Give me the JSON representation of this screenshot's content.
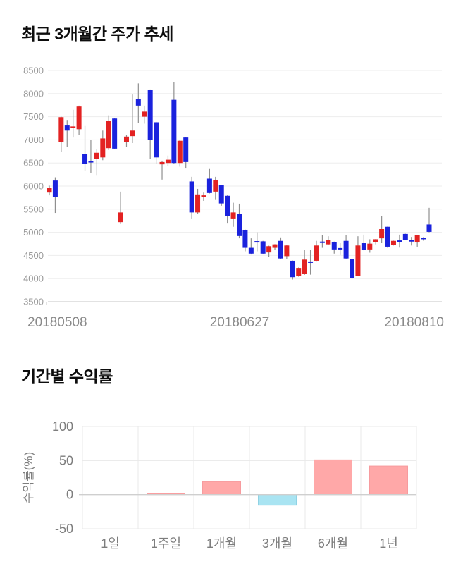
{
  "chart_data": [
    {
      "type": "candlestick",
      "title": "최근 3개월간 주가 추세",
      "ylim": [
        3500,
        8500
      ],
      "y_ticks": [
        8500,
        8000,
        7500,
        7000,
        6500,
        6000,
        5500,
        5000,
        4500,
        4000,
        3500
      ],
      "x_tick_labels": [
        "20180508",
        "20180627",
        "20180810"
      ],
      "grid": "horizontal-only",
      "legend": "none",
      "colors": {
        "up_body": "#e32222",
        "down_body": "#1a22dd",
        "wick": "#8f8f8f",
        "gridline": "#ededed",
        "axis_line": "#c6c6c6",
        "y_tick_text": "#999999",
        "x_tick_text": "#8a8a8a"
      },
      "candles_format": [
        "open",
        "high",
        "low",
        "close",
        "direction"
      ],
      "candles": [
        [
          5860,
          6010,
          5800,
          5960,
          "u"
        ],
        [
          6120,
          6190,
          5420,
          5770,
          "d"
        ],
        [
          6950,
          7500,
          6740,
          7490,
          "u"
        ],
        [
          7310,
          7430,
          6840,
          7200,
          "d"
        ],
        [
          7260,
          7650,
          7050,
          7290,
          "u"
        ],
        [
          7230,
          7740,
          7100,
          7720,
          "u"
        ],
        [
          6700,
          7300,
          6330,
          6480,
          "d"
        ],
        [
          6540,
          7000,
          6290,
          6510,
          "d"
        ],
        [
          6580,
          6800,
          6240,
          6720,
          "u"
        ],
        [
          6620,
          7200,
          6560,
          7030,
          "u"
        ],
        [
          6820,
          7530,
          6780,
          7410,
          "u"
        ],
        [
          7460,
          7470,
          6800,
          6810,
          "d"
        ],
        [
          5220,
          5880,
          5180,
          5430,
          "u"
        ],
        [
          6960,
          7100,
          6850,
          7070,
          "u"
        ],
        [
          7080,
          7980,
          6930,
          7200,
          "u"
        ],
        [
          7890,
          8220,
          7360,
          7740,
          "d"
        ],
        [
          7500,
          7740,
          7350,
          7610,
          "u"
        ],
        [
          8080,
          8090,
          6590,
          7000,
          "d"
        ],
        [
          7380,
          7390,
          6490,
          6620,
          "d"
        ],
        [
          6470,
          6550,
          6140,
          6520,
          "u"
        ],
        [
          6500,
          6660,
          6440,
          6570,
          "u"
        ],
        [
          7865,
          8250,
          6480,
          6500,
          "d"
        ],
        [
          6500,
          6990,
          6420,
          6980,
          "u"
        ],
        [
          7050,
          7060,
          6380,
          6520,
          "d"
        ],
        [
          6100,
          6200,
          5300,
          5430,
          "d"
        ],
        [
          5430,
          5940,
          5400,
          5820,
          "u"
        ],
        [
          5780,
          5860,
          5680,
          5800,
          "u"
        ],
        [
          6160,
          6370,
          5840,
          5850,
          "d"
        ],
        [
          5880,
          6200,
          5700,
          6130,
          "u"
        ],
        [
          6015,
          6020,
          5575,
          5625,
          "d"
        ],
        [
          5790,
          5800,
          5190,
          5345,
          "d"
        ],
        [
          5300,
          5640,
          5120,
          5430,
          "u"
        ],
        [
          5400,
          5620,
          4870,
          4920,
          "d"
        ],
        [
          5055,
          5060,
          4590,
          4665,
          "d"
        ],
        [
          4665,
          4870,
          4520,
          4540,
          "d"
        ],
        [
          4810,
          5000,
          4590,
          4780,
          "d"
        ],
        [
          4805,
          4815,
          4530,
          4540,
          "d"
        ],
        [
          4565,
          4710,
          4465,
          4700,
          "u"
        ],
        [
          4665,
          4745,
          4615,
          4740,
          "u"
        ],
        [
          4815,
          4890,
          4415,
          4435,
          "d"
        ],
        [
          4485,
          4720,
          4430,
          4715,
          "u"
        ],
        [
          4385,
          4390,
          3980,
          4030,
          "d"
        ],
        [
          4060,
          4240,
          4040,
          4230,
          "u"
        ],
        [
          4105,
          4615,
          4080,
          4410,
          "u"
        ],
        [
          4370,
          4615,
          4085,
          4345,
          "d"
        ],
        [
          4385,
          4815,
          4380,
          4715,
          "u"
        ],
        [
          4800,
          4945,
          4665,
          4790,
          "d"
        ],
        [
          4740,
          4915,
          4730,
          4830,
          "u"
        ],
        [
          4790,
          4800,
          4540,
          4630,
          "d"
        ],
        [
          4660,
          4765,
          4510,
          4645,
          "d"
        ],
        [
          4815,
          4945,
          4430,
          4435,
          "d"
        ],
        [
          4425,
          4430,
          3995,
          4005,
          "d"
        ],
        [
          4055,
          4915,
          4050,
          4715,
          "u"
        ],
        [
          4765,
          4950,
          4610,
          4615,
          "d"
        ],
        [
          4630,
          4850,
          4560,
          4755,
          "u"
        ],
        [
          4790,
          4855,
          4740,
          4850,
          "u"
        ],
        [
          4870,
          5350,
          4765,
          5070,
          "u"
        ],
        [
          5120,
          5125,
          4665,
          4690,
          "d"
        ],
        [
          4720,
          4820,
          4715,
          4815,
          "u"
        ],
        [
          4825,
          4950,
          4670,
          4790,
          "d"
        ],
        [
          4965,
          4970,
          4840,
          4840,
          "d"
        ],
        [
          4830,
          4900,
          4715,
          4825,
          "d"
        ],
        [
          4780,
          4940,
          4690,
          4935,
          "u"
        ],
        [
          4880,
          4895,
          4820,
          4870,
          "d"
        ],
        [
          5170,
          5530,
          5000,
          5010,
          "d"
        ]
      ]
    },
    {
      "type": "bar",
      "title": "기간별 수익률",
      "ylabel": "수익률(%)",
      "categories": [
        "1일",
        "1주일",
        "1개월",
        "3개월",
        "6개월",
        "1년"
      ],
      "values": [
        0,
        1.5,
        19,
        -15.5,
        51,
        42
      ],
      "y_ticks": [
        100,
        50,
        0,
        -50
      ],
      "ylim": [
        -50,
        100
      ],
      "grid": "on",
      "legend": "none",
      "colors": {
        "positive_fill": "#ffa8a8",
        "positive_border": "#f79b9e",
        "negative_fill": "#a9e4f2",
        "negative_border": "#90d2e4",
        "gridline": "#e8e8e8",
        "zero_line": "#cfcfcf",
        "tick_text": "#7d7d7d"
      }
    }
  ]
}
